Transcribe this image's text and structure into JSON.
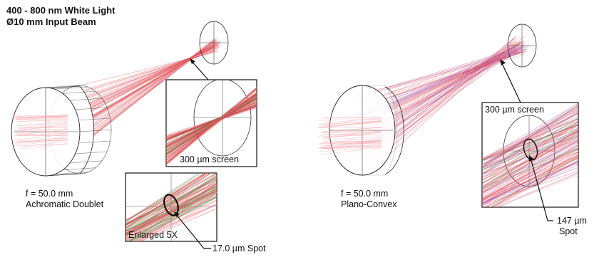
{
  "header": {
    "line1": "400 - 800 nm White Light",
    "line2": "Ø10 mm Input Beam"
  },
  "left": {
    "focal_length": "f = 50.0 mm",
    "lens_type": "Achromatic Doublet",
    "screen_label": "300 µm screen",
    "enlarged_label": "Enlarged 5X",
    "spot_label": "17.0 µm Spot"
  },
  "right": {
    "focal_length": "f = 50.0 mm",
    "lens_type": "Plano-Convex",
    "screen_label": "300 µm screen",
    "spot_value": "147 µm",
    "spot_word": "Spot"
  },
  "colors": {
    "ray_red": "#e0404a",
    "ray_pink": "#f2a0a8",
    "ray_green": "#35a845",
    "ray_purple": "#a060c8",
    "outline": "#222222"
  }
}
